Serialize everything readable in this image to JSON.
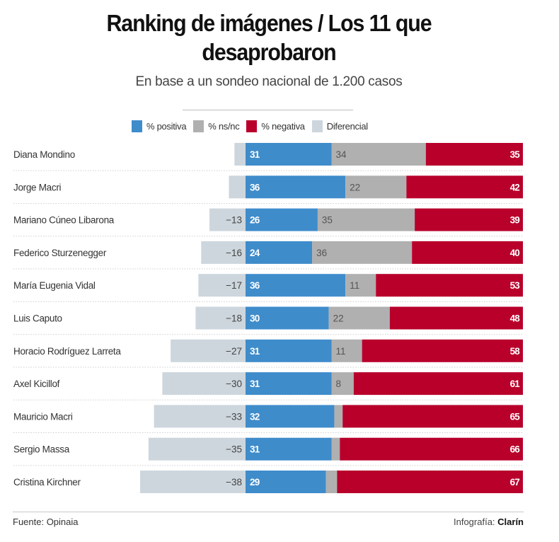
{
  "header": {
    "title_line1": "Ranking de imágenes / Los 11 que",
    "title_line2": "desaprobaron",
    "subtitle": "En base a un sondeo nacional de 1.200 casos"
  },
  "legend": [
    {
      "label": "% positiva",
      "color": "#3f8ccb"
    },
    {
      "label": "% ns/nc",
      "color": "#b0b0b0"
    },
    {
      "label": "% negativa",
      "color": "#b8002b"
    },
    {
      "label": "Diferencial",
      "color": "#cdd6dd"
    }
  ],
  "footer": {
    "source": "Fuente: Opinaia",
    "credit_prefix": "Infografía: ",
    "credit_brand": "Clarín"
  },
  "chart_data": {
    "type": "bar",
    "orientation": "horizontal-stacked",
    "title": "Ranking de imágenes / Los 11 que desaprobaron",
    "subtitle": "En base a un sondeo nacional de 1.200 casos",
    "categories": [
      "Diana Mondino",
      "Jorge Macri",
      "Mariano Cúneo Libarona",
      "Federico Sturzenegger",
      "María Eugenia Vidal",
      "Luis Caputo",
      "Horacio Rodríguez Larreta",
      "Axel Kicillof",
      "Mauricio Macri",
      "Sergio Massa",
      "Cristina Kirchner"
    ],
    "series": [
      {
        "name": "% positiva",
        "color": "#3f8ccb",
        "values": [
          31,
          36,
          26,
          24,
          36,
          30,
          31,
          31,
          32,
          31,
          29
        ]
      },
      {
        "name": "% ns/nc",
        "color": "#b0b0b0",
        "values": [
          34,
          22,
          35,
          36,
          11,
          22,
          11,
          8,
          3,
          3,
          4
        ]
      },
      {
        "name": "% negativa",
        "color": "#b8002b",
        "values": [
          35,
          42,
          39,
          40,
          53,
          48,
          58,
          61,
          65,
          66,
          67
        ]
      },
      {
        "name": "Diferencial",
        "color": "#cdd6dd",
        "values": [
          -4,
          -6,
          -13,
          -16,
          -17,
          -18,
          -27,
          -30,
          -33,
          -35,
          -38
        ]
      }
    ],
    "value_labels": {
      "positiva": [
        "31",
        "36",
        "26",
        "24",
        "36",
        "30",
        "31",
        "31",
        "32",
        "31",
        "29"
      ],
      "nsnc": [
        "34",
        "22",
        "35",
        "36",
        "11",
        "22",
        "11",
        "8",
        "",
        "",
        ""
      ],
      "negativa": [
        "35",
        "42",
        "39",
        "40",
        "53",
        "48",
        "58",
        "61",
        "65",
        "66",
        "67"
      ],
      "diferencial": [
        "",
        "",
        "−13",
        "−16",
        "−17",
        "−18",
        "−27",
        "−30",
        "−33",
        "−35",
        "−38"
      ]
    },
    "xlabel": "",
    "ylabel": "",
    "xlim": [
      -40,
      100
    ],
    "grid": false,
    "legend_position": "top-center"
  }
}
